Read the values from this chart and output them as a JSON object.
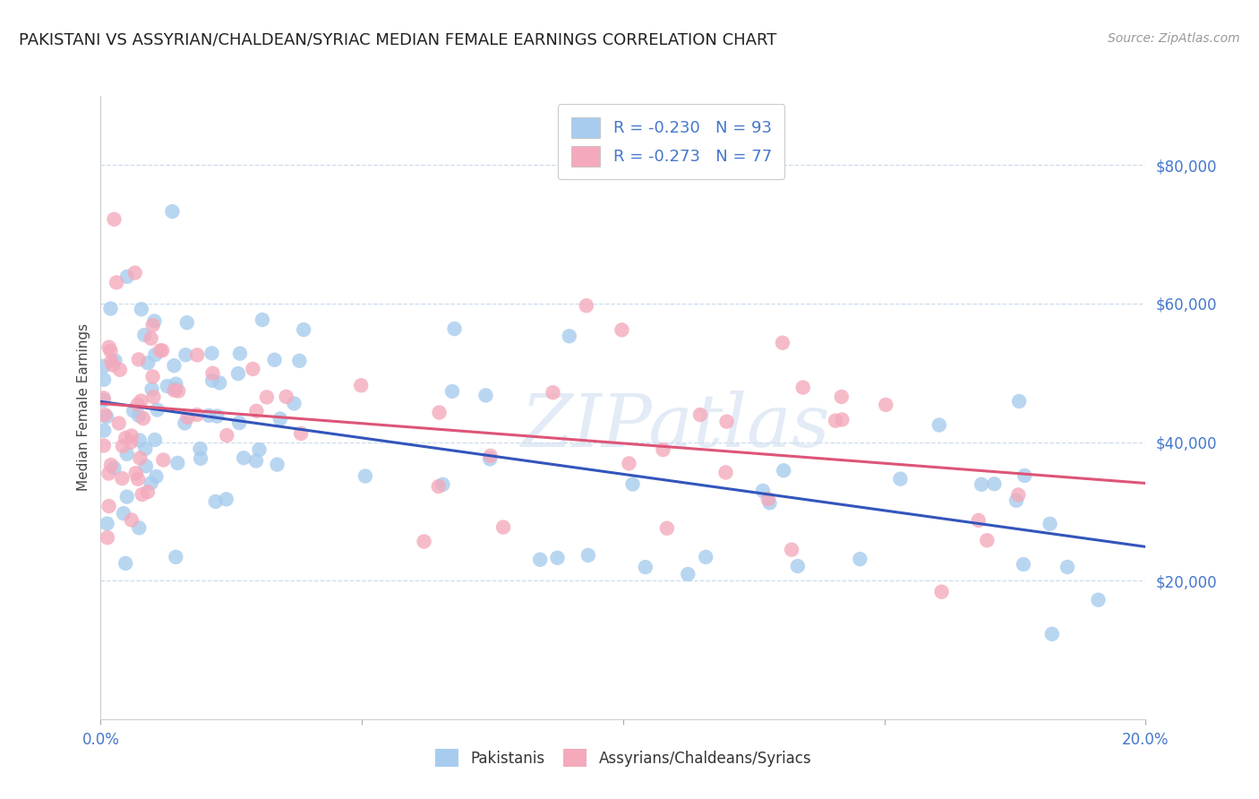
{
  "title": "PAKISTANI VS ASSYRIAN/CHALDEAN/SYRIAC MEDIAN FEMALE EARNINGS CORRELATION CHART",
  "source": "Source: ZipAtlas.com",
  "ylabel": "Median Female Earnings",
  "xlim": [
    0.0,
    0.2
  ],
  "ylim": [
    0,
    90000
  ],
  "yticks": [
    20000,
    40000,
    60000,
    80000
  ],
  "xticks": [
    0.0,
    0.05,
    0.1,
    0.15,
    0.2
  ],
  "xtick_labels": [
    "0.0%",
    "",
    "",
    "",
    "20.0%"
  ],
  "legend_r_pakistani": "-0.230",
  "legend_n_pakistani": "93",
  "legend_r_assyrian": "-0.273",
  "legend_n_assyrian": "77",
  "color_pakistani": "#A8CCEE",
  "color_assyrian": "#F4AABC",
  "line_color_pakistani": "#3355BB",
  "line_color_assyrian": "#DD5577",
  "watermark": "ZIPatlas",
  "background_color": "#FFFFFF",
  "title_fontsize": 13,
  "tick_label_color": "#4477CC",
  "N_pakistani": 93,
  "N_assyrian": 77,
  "pak_intercept": 46000,
  "pak_slope": -95000,
  "ass_intercept": 46500,
  "ass_slope": -47000
}
